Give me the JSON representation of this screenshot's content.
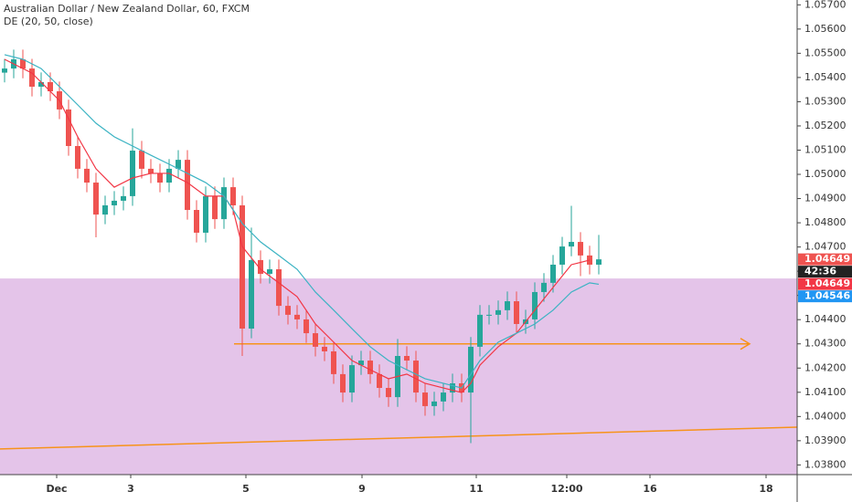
{
  "chart_data": {
    "type": "candlestick",
    "title": "Australian Dollar / New Zealand Dollar, 60, FXCM",
    "subtitle": "DE (20, 50, close)",
    "xlim": [
      -0.5,
      86.7
    ],
    "xticks": [
      {
        "value": 5.7,
        "label": "Dec"
      },
      {
        "value": 13.8,
        "label": "3"
      },
      {
        "value": 26.4,
        "label": "5"
      },
      {
        "value": 39.1,
        "label": "9"
      },
      {
        "value": 51.6,
        "label": "11"
      },
      {
        "value": 61.5,
        "label": "12:00"
      },
      {
        "value": 70.6,
        "label": "16"
      },
      {
        "value": 83.3,
        "label": "18"
      }
    ],
    "ylim": [
      1.0376,
      1.0572
    ],
    "yticks": [
      {
        "value": 1.038,
        "label": "1.03800"
      },
      {
        "value": 1.039,
        "label": "1.03900"
      },
      {
        "value": 1.04,
        "label": "1.04000"
      },
      {
        "value": 1.041,
        "label": "1.04100"
      },
      {
        "value": 1.042,
        "label": "1.04200"
      },
      {
        "value": 1.043,
        "label": "1.04300"
      },
      {
        "value": 1.044,
        "label": "1.04400"
      },
      {
        "value": 1.045,
        "label": "1.04500"
      },
      {
        "value": 1.046,
        "label": "1.04600"
      },
      {
        "value": 1.047,
        "label": "1.04700"
      },
      {
        "value": 1.048,
        "label": "1.04800"
      },
      {
        "value": 1.049,
        "label": "1.04900"
      },
      {
        "value": 1.05,
        "label": "1.05000"
      },
      {
        "value": 1.051,
        "label": "1.05100"
      },
      {
        "value": 1.052,
        "label": "1.05200"
      },
      {
        "value": 1.053,
        "label": "1.05300"
      },
      {
        "value": 1.054,
        "label": "1.05400"
      },
      {
        "value": 1.055,
        "label": "1.05500"
      },
      {
        "value": 1.056,
        "label": "1.05600"
      },
      {
        "value": 1.057,
        "label": "1.05700"
      }
    ],
    "up_color": "#26a69a",
    "down_color": "#ef5350",
    "candles": {
      "open": [
        1.0542,
        1.05437,
        1.05475,
        1.05437,
        1.05362,
        1.05381,
        1.05343,
        1.05268,
        1.05117,
        1.05023,
        1.04966,
        1.04834,
        1.04872,
        1.04891,
        1.0491,
        1.05098,
        1.05023,
        1.05004,
        1.04966,
        1.05023,
        1.0506,
        1.04853,
        1.04759,
        1.0491,
        1.04815,
        1.04947,
        1.04872,
        1.04363,
        1.04646,
        1.04589,
        1.04608,
        1.04457,
        1.0442,
        1.04401,
        1.04344,
        1.04288,
        1.04269,
        1.04175,
        1.04099,
        1.04212,
        1.04231,
        1.04175,
        1.04118,
        1.0408,
        1.0425,
        1.04231,
        1.04099,
        1.04043,
        1.04062,
        1.04099,
        1.04137,
        1.04099,
        1.04288,
        1.0442,
        1.0442,
        1.04439,
        1.04476,
        1.04382,
        1.04401,
        1.04514,
        1.04552,
        1.04627,
        1.04702,
        1.04721,
        1.04665,
        1.04627
      ],
      "high": [
        1.05477,
        1.05515,
        1.05515,
        1.05477,
        1.05421,
        1.05421,
        1.05383,
        1.05308,
        1.05157,
        1.05063,
        1.05006,
        1.04912,
        1.04931,
        1.0495,
        1.0519,
        1.05138,
        1.05063,
        1.05044,
        1.05063,
        1.051,
        1.051,
        1.04893,
        1.0495,
        1.0495,
        1.04987,
        1.04987,
        1.04912,
        1.0478,
        1.04686,
        1.04648,
        1.04648,
        1.04497,
        1.0446,
        1.04441,
        1.04384,
        1.04328,
        1.04309,
        1.04215,
        1.04252,
        1.04271,
        1.04271,
        1.04215,
        1.04158,
        1.0432,
        1.0429,
        1.04271,
        1.04139,
        1.04102,
        1.04139,
        1.04177,
        1.04177,
        1.04328,
        1.0446,
        1.0446,
        1.04479,
        1.04516,
        1.04516,
        1.04441,
        1.04554,
        1.04592,
        1.04667,
        1.04742,
        1.0487,
        1.04761,
        1.04705,
        1.0475
      ],
      "low": [
        1.0538,
        1.05397,
        1.05397,
        1.05322,
        1.05322,
        1.05303,
        1.05228,
        1.05077,
        1.04983,
        1.04926,
        1.0474,
        1.04794,
        1.04832,
        1.04851,
        1.0487,
        1.04983,
        1.04964,
        1.04926,
        1.04926,
        1.04983,
        1.04813,
        1.04719,
        1.04719,
        1.04775,
        1.04775,
        1.04832,
        1.0425,
        1.04323,
        1.04549,
        1.04549,
        1.04417,
        1.0438,
        1.04361,
        1.04304,
        1.04248,
        1.04229,
        1.04135,
        1.04059,
        1.04059,
        1.04172,
        1.04135,
        1.04078,
        1.0404,
        1.0404,
        1.04191,
        1.04059,
        1.04003,
        1.04003,
        1.04022,
        1.04059,
        1.04059,
        1.0389,
        1.04248,
        1.0438,
        1.0438,
        1.04399,
        1.04342,
        1.04342,
        1.04361,
        1.04474,
        1.04512,
        1.04587,
        1.04662,
        1.0458,
        1.04587,
        1.04587
      ],
      "close": [
        1.05437,
        1.05475,
        1.05437,
        1.05362,
        1.05381,
        1.05343,
        1.05268,
        1.05117,
        1.05023,
        1.04966,
        1.04834,
        1.04872,
        1.04891,
        1.0491,
        1.05098,
        1.05023,
        1.05004,
        1.04966,
        1.05023,
        1.0506,
        1.04853,
        1.04759,
        1.0491,
        1.04815,
        1.04947,
        1.04872,
        1.04363,
        1.04646,
        1.04589,
        1.04608,
        1.04457,
        1.0442,
        1.04401,
        1.04344,
        1.04288,
        1.04269,
        1.04175,
        1.04099,
        1.04212,
        1.04231,
        1.04175,
        1.04118,
        1.0408,
        1.0425,
        1.04231,
        1.04099,
        1.04043,
        1.04062,
        1.04099,
        1.04137,
        1.04099,
        1.04288,
        1.0442,
        1.0442,
        1.04439,
        1.04476,
        1.04382,
        1.04401,
        1.04514,
        1.04552,
        1.04627,
        1.04702,
        1.04721,
        1.04665,
        1.04627,
        1.04649
      ]
    },
    "series": [
      {
        "color": "#f23645",
        "x": [
          0,
          3,
          6,
          8,
          10,
          12,
          14,
          16,
          18,
          20,
          22,
          24,
          25,
          26,
          28,
          30,
          32,
          34,
          36,
          38,
          40,
          42,
          44,
          46,
          48,
          50,
          51,
          52,
          54,
          56,
          58,
          60,
          62,
          64
        ],
        "values": [
          1.05475,
          1.05418,
          1.05305,
          1.05155,
          1.05023,
          1.04947,
          1.04985,
          1.05004,
          1.05004,
          1.04966,
          1.0491,
          1.0491,
          1.04853,
          1.04702,
          1.04608,
          1.04552,
          1.04495,
          1.04382,
          1.04307,
          1.04231,
          1.04193,
          1.04156,
          1.04175,
          1.04137,
          1.04118,
          1.04099,
          1.04137,
          1.04212,
          1.04288,
          1.04344,
          1.04439,
          1.04533,
          1.04627,
          1.04646
        ]
      },
      {
        "color": "#3bb3c3",
        "x": [
          0,
          2,
          4,
          6,
          8,
          10,
          12,
          14,
          16,
          18,
          20,
          22,
          24,
          26,
          28,
          30,
          32,
          34,
          36,
          38,
          40,
          42,
          44,
          46,
          48,
          50,
          52,
          54,
          56,
          58,
          60,
          62,
          64,
          65
        ],
        "values": [
          1.05494,
          1.05475,
          1.05437,
          1.05362,
          1.05287,
          1.05211,
          1.05155,
          1.05117,
          1.05079,
          1.05042,
          1.05004,
          1.04966,
          1.0491,
          1.04797,
          1.04721,
          1.04665,
          1.04608,
          1.04514,
          1.04439,
          1.04363,
          1.04288,
          1.04231,
          1.04193,
          1.04156,
          1.04137,
          1.04118,
          1.04231,
          1.04307,
          1.04344,
          1.04382,
          1.04439,
          1.04514,
          1.04552,
          1.04546
        ]
      }
    ],
    "zone": {
      "top": 1.0457,
      "color": "#e1bee7"
    },
    "hline": {
      "value": 1.043,
      "x": [
        25.1,
        81.5
      ],
      "color": "#f7931a"
    },
    "trend": {
      "x": [
        -0.5,
        86.7
      ],
      "values": [
        1.03866,
        1.03956
      ],
      "color": "#f7931a"
    },
    "price_tags": [
      {
        "value": 1.04649,
        "color": "#ef5350"
      },
      {
        "text": "42:36",
        "color": "#222222"
      },
      {
        "value": 1.04649,
        "color": "#f23645"
      },
      {
        "value": 1.04546,
        "color": "#2196f3"
      }
    ]
  }
}
